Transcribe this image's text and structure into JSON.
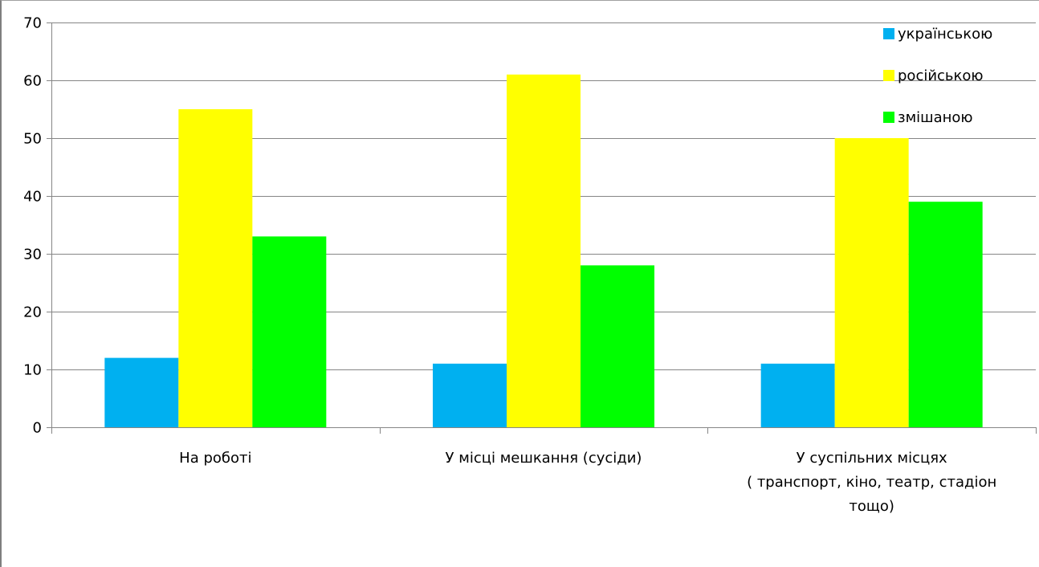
{
  "chart_data": {
    "type": "bar",
    "categories": [
      [
        "На роботі"
      ],
      [
        "У місці мешкання (сусіди)"
      ],
      [
        "У суспільних місцях",
        "( транспорт, кіно, театр, стадіон",
        "тощо)"
      ]
    ],
    "series": [
      {
        "name": "українською",
        "color": "#00b0f0",
        "values": [
          12,
          11,
          11
        ]
      },
      {
        "name": "російською",
        "color": "#ffff00",
        "values": [
          55,
          61,
          50
        ]
      },
      {
        "name": "змішаною",
        "color": "#00ff00",
        "values": [
          33,
          28,
          39
        ]
      }
    ],
    "ylim": [
      0,
      70
    ],
    "yticks": [
      0,
      10,
      20,
      30,
      40,
      50,
      60,
      70
    ],
    "grid": true,
    "legend_position": "top-right"
  }
}
